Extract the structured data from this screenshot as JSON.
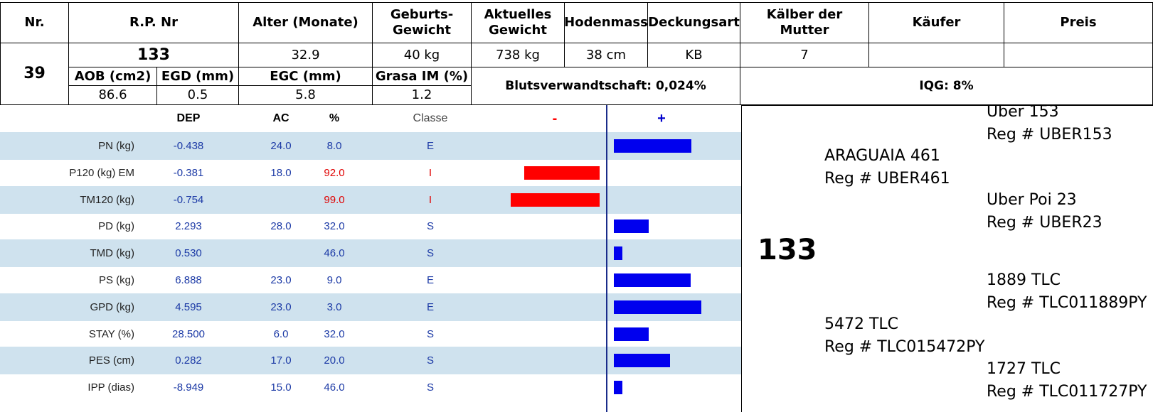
{
  "header": {
    "col_nr": "Nr.",
    "col_rp": "R.P. Nr",
    "col_alter": "Alter (Monate)",
    "col_geburt": "Geburts-\nGewicht",
    "col_aktuell": "Aktuelles\nGewicht",
    "col_hoden": "Hodenmass",
    "col_deckung": "Deckungsart",
    "col_kaelber": "Kälber der\nMutter",
    "col_kaeufer": "Käufer",
    "col_preis": "Preis",
    "nr": "39",
    "rp": "133",
    "alter": "32.9",
    "geburt": "40 kg",
    "aktuell": "738 kg",
    "hoden": "38 cm",
    "deckung": "KB",
    "kaelber": "7",
    "kaeufer": "",
    "preis": "",
    "sub_aob": "AOB (cm2)",
    "sub_egd": "EGD (mm)",
    "sub_egc": "EGC (mm)",
    "sub_grasa": "Grasa IM (%)",
    "aob": "86.6",
    "egd": "0.5",
    "egc": "5.8",
    "grasa": "1.2",
    "blut": "Blutsverwandtschaft: 0,024%",
    "iqg": "IQG: 8%"
  },
  "epd": {
    "head_dep": "DEP",
    "head_ac": "AC",
    "head_pct": "%",
    "head_cls": "Classe",
    "head_minus": "-",
    "head_plus": "+",
    "minus_color": "#ff0000",
    "plus_color": "#0000ee",
    "rows": [
      {
        "label": "PN (kg)",
        "dep": "-0.438",
        "ac": "24.0",
        "pct": "8.0",
        "cls": "E",
        "dir": "pos",
        "bar": 0.72,
        "pct_color": "#1c3aa6",
        "cls_color": "#1c3aa6"
      },
      {
        "label": "P120 (kg) EM",
        "dep": "-0.381",
        "ac": "18.0",
        "pct": "92.0",
        "cls": "I",
        "dir": "neg",
        "bar": 0.7,
        "pct_color": "#e00000",
        "cls_color": "#e00000"
      },
      {
        "label": "TM120 (kg)",
        "dep": "-0.754",
        "ac": "",
        "pct": "99.0",
        "cls": "I",
        "dir": "neg",
        "bar": 0.82,
        "pct_color": "#e00000",
        "cls_color": "#e00000"
      },
      {
        "label": "PD (kg)",
        "dep": "2.293",
        "ac": "28.0",
        "pct": "32.0",
        "cls": "S",
        "dir": "pos",
        "bar": 0.32,
        "pct_color": "#1c3aa6",
        "cls_color": "#1c3aa6"
      },
      {
        "label": "TMD (kg)",
        "dep": "0.530",
        "ac": "",
        "pct": "46.0",
        "cls": "S",
        "dir": "pos",
        "bar": 0.08,
        "pct_color": "#1c3aa6",
        "cls_color": "#1c3aa6"
      },
      {
        "label": "PS (kg)",
        "dep": "6.888",
        "ac": "23.0",
        "pct": "9.0",
        "cls": "E",
        "dir": "pos",
        "bar": 0.71,
        "pct_color": "#1c3aa6",
        "cls_color": "#1c3aa6"
      },
      {
        "label": "GPD (kg)",
        "dep": "4.595",
        "ac": "23.0",
        "pct": "3.0",
        "cls": "E",
        "dir": "pos",
        "bar": 0.81,
        "pct_color": "#1c3aa6",
        "cls_color": "#1c3aa6"
      },
      {
        "label": "STAY (%)",
        "dep": "28.500",
        "ac": "6.0",
        "pct": "32.0",
        "cls": "S",
        "dir": "pos",
        "bar": 0.32,
        "pct_color": "#1c3aa6",
        "cls_color": "#1c3aa6"
      },
      {
        "label": "PES (cm)",
        "dep": "0.282",
        "ac": "17.0",
        "pct": "20.0",
        "cls": "S",
        "dir": "pos",
        "bar": 0.52,
        "pct_color": "#1c3aa6",
        "cls_color": "#1c3aa6"
      },
      {
        "label": "IPP (dias)",
        "dep": "-8.949",
        "ac": "15.0",
        "pct": "46.0",
        "cls": "S",
        "dir": "pos",
        "bar": 0.08,
        "pct_color": "#1c3aa6",
        "cls_color": "#1c3aa6"
      }
    ]
  },
  "pedigree": {
    "animal": "133",
    "sire": {
      "name": "ARAGUAIA 461",
      "reg": "Reg # UBER461"
    },
    "sire_sire": {
      "name": "Uber 153",
      "reg": "Reg # UBER153"
    },
    "sire_dam": {
      "name": "Uber Poi 23",
      "reg": "Reg # UBER23"
    },
    "dam": {
      "name": "5472 TLC",
      "reg": "Reg # TLC015472PY"
    },
    "dam_sire": {
      "name": "1889 TLC",
      "reg": "Reg # TLC011889PY"
    },
    "dam_dam": {
      "name": "1727 TLC",
      "reg": "Reg # TLC011727PY"
    }
  }
}
